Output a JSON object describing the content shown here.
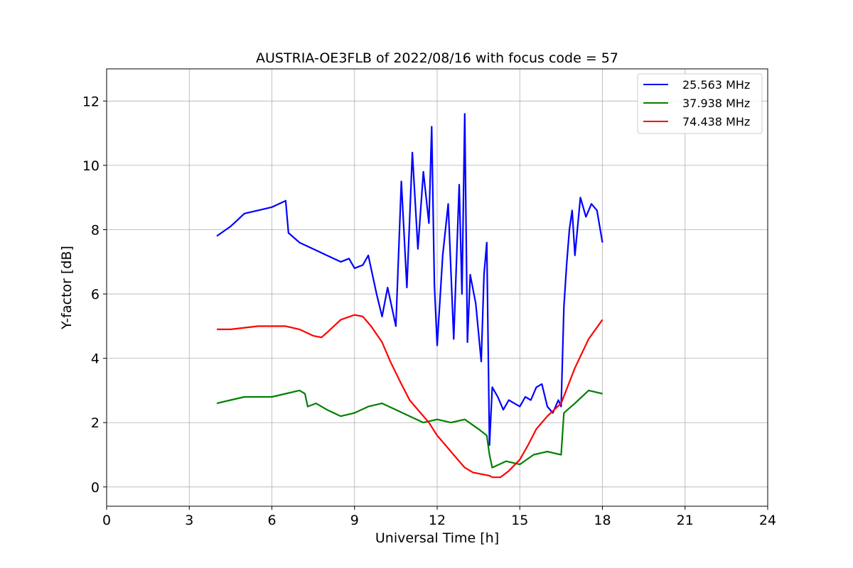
{
  "chart_data": {
    "type": "line",
    "title": "AUSTRIA-OE3FLB of 2022/08/16 with focus code = 57",
    "xlabel": "Universal Time [h]",
    "ylabel": "Y-factor [dB]",
    "xlim": [
      0,
      24
    ],
    "ylim": [
      -0.6,
      13
    ],
    "xticks": [
      0,
      3,
      6,
      9,
      12,
      15,
      18,
      21,
      24
    ],
    "yticks": [
      0,
      2,
      4,
      6,
      8,
      10,
      12
    ],
    "grid": true,
    "legend_position": "top-right",
    "series": [
      {
        "name": "25.563 MHz",
        "color": "#0000ff",
        "x": [
          4.0,
          4.5,
          5.0,
          5.5,
          6.0,
          6.5,
          6.6,
          7.0,
          7.5,
          8.0,
          8.5,
          8.8,
          9.0,
          9.3,
          9.5,
          9.8,
          10.0,
          10.2,
          10.5,
          10.7,
          10.9,
          11.1,
          11.3,
          11.5,
          11.7,
          11.8,
          11.9,
          12.0,
          12.2,
          12.4,
          12.6,
          12.8,
          12.9,
          13.0,
          13.1,
          13.2,
          13.4,
          13.6,
          13.7,
          13.8,
          13.9,
          14.0,
          14.2,
          14.4,
          14.6,
          14.8,
          15.0,
          15.2,
          15.4,
          15.6,
          15.8,
          16.0,
          16.2,
          16.4,
          16.5,
          16.6,
          16.7,
          16.8,
          16.9,
          17.0,
          17.2,
          17.4,
          17.6,
          17.8,
          18.0
        ],
        "y": [
          7.8,
          8.1,
          8.5,
          8.6,
          8.7,
          8.9,
          7.9,
          7.6,
          7.4,
          7.2,
          7.0,
          7.1,
          6.8,
          6.9,
          7.2,
          6.0,
          5.3,
          6.2,
          5.0,
          9.5,
          6.2,
          10.4,
          7.4,
          9.8,
          8.2,
          11.2,
          6.3,
          4.4,
          7.2,
          8.8,
          4.6,
          9.4,
          6.0,
          11.6,
          4.5,
          6.6,
          5.7,
          3.9,
          6.6,
          7.6,
          1.3,
          3.1,
          2.8,
          2.4,
          2.7,
          2.6,
          2.5,
          2.8,
          2.7,
          3.1,
          3.2,
          2.5,
          2.3,
          2.7,
          2.5,
          5.6,
          6.9,
          8.0,
          8.6,
          7.2,
          9.0,
          8.4,
          8.8,
          8.6,
          7.6
        ]
      },
      {
        "name": "37.938 MHz",
        "color": "#008000",
        "x": [
          4.0,
          4.5,
          5.0,
          5.5,
          6.0,
          6.5,
          7.0,
          7.2,
          7.3,
          7.6,
          8.0,
          8.5,
          9.0,
          9.5,
          10.0,
          10.5,
          11.0,
          11.5,
          12.0,
          12.5,
          13.0,
          13.5,
          13.8,
          13.9,
          14.0,
          14.5,
          15.0,
          15.5,
          16.0,
          16.5,
          16.6,
          17.0,
          17.5,
          18.0
        ],
        "y": [
          2.6,
          2.7,
          2.8,
          2.8,
          2.8,
          2.9,
          3.0,
          2.9,
          2.5,
          2.6,
          2.4,
          2.2,
          2.3,
          2.5,
          2.6,
          2.4,
          2.2,
          2.0,
          2.1,
          2.0,
          2.1,
          1.8,
          1.6,
          1.0,
          0.6,
          0.8,
          0.7,
          1.0,
          1.1,
          1.0,
          2.3,
          2.6,
          3.0,
          2.9
        ]
      },
      {
        "name": "74.438 MHz",
        "color": "#ff0000",
        "x": [
          4.0,
          4.5,
          5.0,
          5.5,
          6.0,
          6.5,
          7.0,
          7.5,
          7.8,
          8.0,
          8.5,
          9.0,
          9.3,
          9.6,
          10.0,
          10.3,
          10.7,
          11.0,
          11.3,
          11.7,
          12.0,
          12.3,
          12.7,
          13.0,
          13.3,
          13.6,
          13.9,
          14.0,
          14.3,
          14.6,
          15.0,
          15.3,
          15.6,
          16.0,
          16.5,
          17.0,
          17.5,
          18.0
        ],
        "y": [
          4.9,
          4.9,
          4.95,
          5.0,
          5.0,
          5.0,
          4.9,
          4.7,
          4.65,
          4.8,
          5.2,
          5.35,
          5.3,
          5.0,
          4.5,
          3.9,
          3.2,
          2.7,
          2.4,
          2.0,
          1.6,
          1.3,
          0.9,
          0.6,
          0.45,
          0.4,
          0.35,
          0.3,
          0.3,
          0.5,
          0.85,
          1.3,
          1.8,
          2.2,
          2.6,
          3.7,
          4.6,
          5.2
        ]
      }
    ]
  }
}
